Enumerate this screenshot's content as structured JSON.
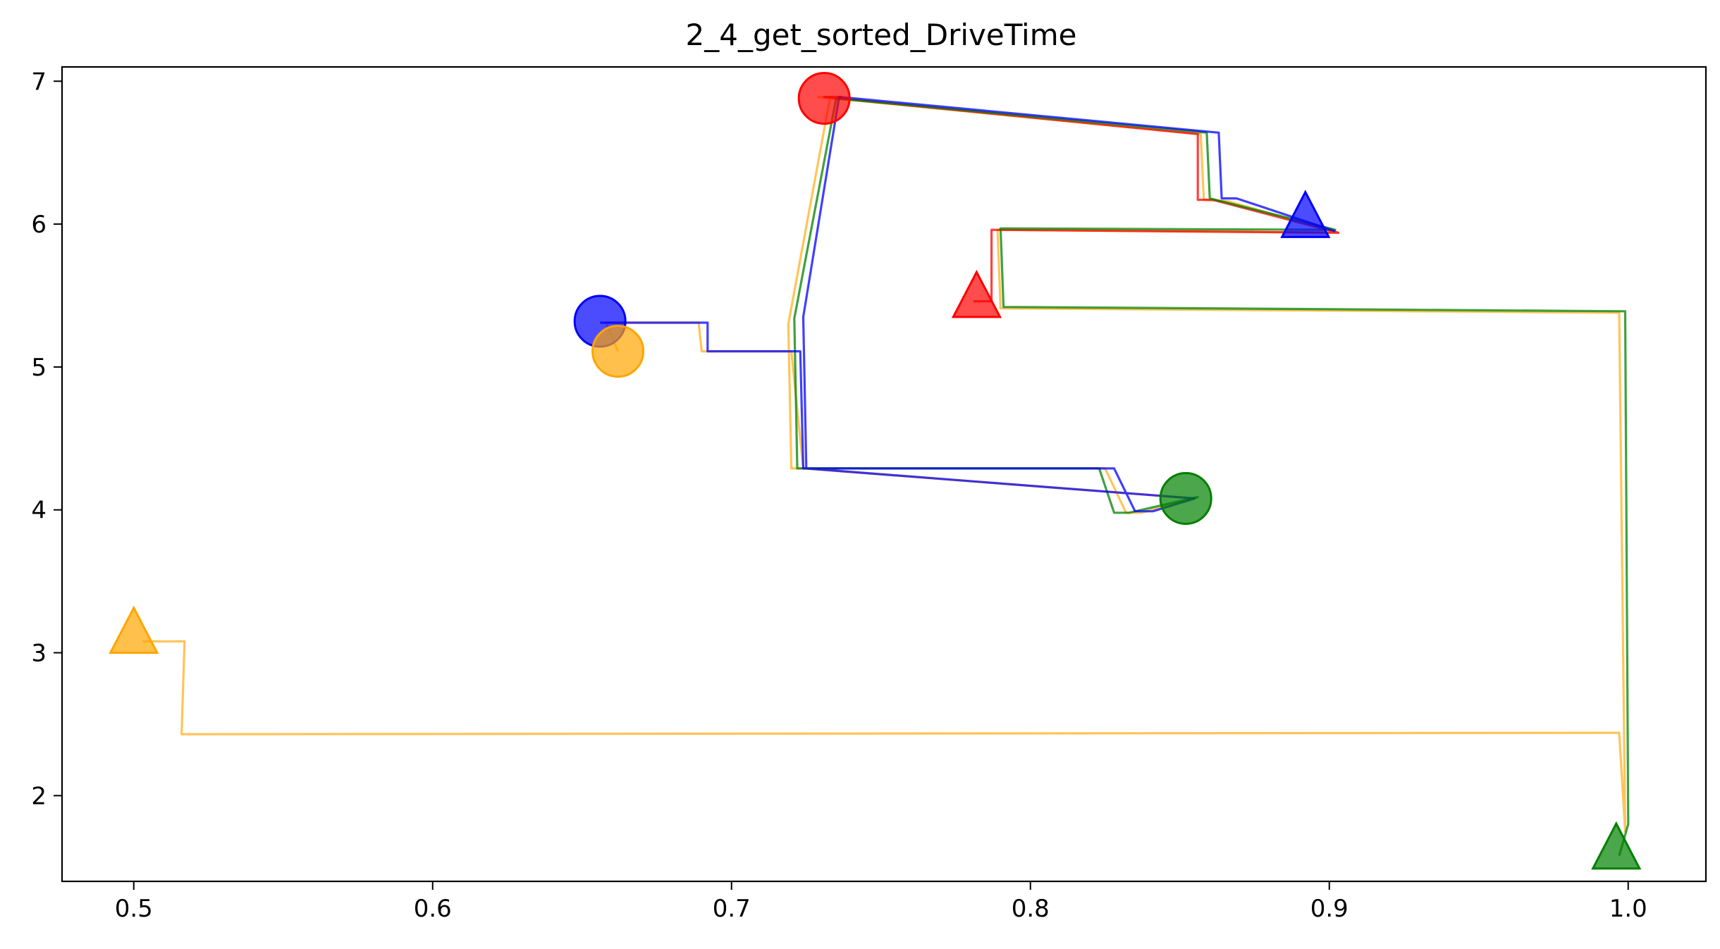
{
  "chart_data": {
    "type": "line",
    "title": "2_4_get_sorted_DriveTime",
    "xlabel": "",
    "ylabel": "",
    "xlim": [
      0.476,
      1.026
    ],
    "ylim": [
      1.4,
      7.1
    ],
    "grid": false,
    "x_ticks": [
      "0.5",
      "0.6",
      "0.7",
      "0.8",
      "0.9",
      "1.0"
    ],
    "y_ticks": [
      "2",
      "3",
      "4",
      "5",
      "6",
      "7"
    ],
    "colors": {
      "red": "#ff0000",
      "orange": "#ffa500",
      "green": "#008000",
      "blue": "#0000ff"
    },
    "series": [
      {
        "color": "orange",
        "points": [
          [
            0.503,
            3.08
          ],
          [
            0.517,
            3.08
          ],
          [
            0.516,
            2.43
          ],
          [
            0.997,
            2.44
          ],
          [
            0.999,
            1.75
          ],
          [
            0.997,
            5.38
          ],
          [
            0.79,
            5.41
          ],
          [
            0.789,
            5.96
          ],
          [
            0.903,
            5.94
          ],
          [
            0.866,
            6.16
          ],
          [
            0.858,
            6.17
          ],
          [
            0.857,
            6.63
          ],
          [
            0.729,
            6.89
          ],
          [
            0.733,
            6.89
          ],
          [
            0.719,
            5.3
          ],
          [
            0.72,
            4.29
          ],
          [
            0.825,
            4.29
          ],
          [
            0.832,
            3.98
          ],
          [
            0.837,
            3.98
          ],
          [
            0.855,
            4.08
          ],
          [
            0.724,
            4.29
          ],
          [
            0.72,
            5.11
          ],
          [
            0.69,
            5.11
          ],
          [
            0.689,
            5.31
          ],
          [
            0.658,
            5.31
          ],
          [
            0.662,
            5.11
          ]
        ]
      },
      {
        "color": "red",
        "points": [
          [
            0.781,
            5.46
          ],
          [
            0.787,
            5.46
          ],
          [
            0.787,
            5.96
          ],
          [
            0.903,
            5.94
          ],
          [
            0.861,
            6.17
          ],
          [
            0.856,
            6.17
          ],
          [
            0.856,
            6.63
          ],
          [
            0.731,
            6.89
          ],
          [
            0.737,
            6.89
          ]
        ]
      },
      {
        "color": "green",
        "points": [
          [
            0.852,
            4.07
          ],
          [
            0.856,
            4.09
          ],
          [
            0.833,
            3.98
          ],
          [
            0.828,
            3.98
          ],
          [
            0.823,
            4.29
          ],
          [
            0.722,
            4.29
          ],
          [
            0.721,
            5.34
          ],
          [
            0.735,
            6.88
          ],
          [
            0.859,
            6.64
          ],
          [
            0.86,
            6.18
          ],
          [
            0.902,
            5.96
          ],
          [
            0.79,
            5.97
          ],
          [
            0.791,
            5.42
          ],
          [
            0.999,
            5.39
          ],
          [
            1.0,
            1.8
          ],
          [
            0.997,
            1.58
          ]
        ]
      },
      {
        "color": "blue",
        "points": [
          [
            0.656,
            5.31
          ],
          [
            0.692,
            5.31
          ],
          [
            0.692,
            5.11
          ],
          [
            0.723,
            5.11
          ],
          [
            0.724,
            4.29
          ],
          [
            0.828,
            4.29
          ],
          [
            0.835,
            3.99
          ],
          [
            0.841,
            3.99
          ],
          [
            0.855,
            4.08
          ],
          [
            0.725,
            4.29
          ],
          [
            0.724,
            5.35
          ],
          [
            0.736,
            6.89
          ],
          [
            0.863,
            6.64
          ],
          [
            0.864,
            6.18
          ],
          [
            0.869,
            6.18
          ],
          [
            0.902,
            5.95
          ]
        ]
      }
    ],
    "markers": [
      {
        "shape": "circle",
        "color": "red",
        "x": 0.731,
        "y": 6.88
      },
      {
        "shape": "circle",
        "color": "blue",
        "x": 0.656,
        "y": 5.32
      },
      {
        "shape": "circle",
        "color": "orange",
        "x": 0.662,
        "y": 5.11
      },
      {
        "shape": "circle",
        "color": "green",
        "x": 0.852,
        "y": 4.08
      },
      {
        "shape": "triangle",
        "color": "blue",
        "x": 0.892,
        "y": 6.02
      },
      {
        "shape": "triangle",
        "color": "red",
        "x": 0.782,
        "y": 5.46
      },
      {
        "shape": "triangle",
        "color": "orange",
        "x": 0.5,
        "y": 3.11
      },
      {
        "shape": "triangle",
        "color": "green",
        "x": 0.996,
        "y": 1.6
      }
    ]
  }
}
